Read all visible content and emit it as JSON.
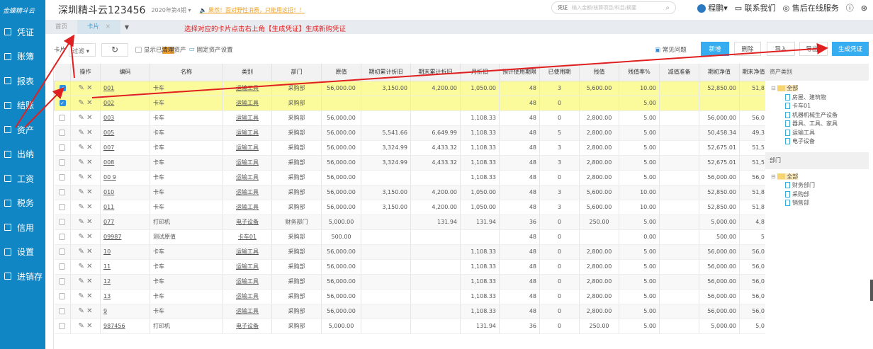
{
  "sidebar": {
    "logo": "金蝶精斗云",
    "items": [
      {
        "label": "凭证",
        "icon": "voucher-icon"
      },
      {
        "label": "账簿",
        "icon": "ledger-icon"
      },
      {
        "label": "报表",
        "icon": "report-icon"
      },
      {
        "label": "结账",
        "icon": "checkout-icon"
      },
      {
        "label": "资产",
        "icon": "asset-icon"
      },
      {
        "label": "出纳",
        "icon": "cashier-icon"
      },
      {
        "label": "工资",
        "icon": "salary-icon"
      },
      {
        "label": "税务",
        "icon": "tax-icon"
      },
      {
        "label": "信用",
        "icon": "credit-icon"
      },
      {
        "label": "设置",
        "icon": "gear-icon"
      },
      {
        "label": "进销存",
        "icon": "inventory-icon"
      }
    ]
  },
  "header": {
    "company": "深圳精斗云123456",
    "period": "2020年第4期",
    "notice": "果然！面对野性消费，只能用这招！！",
    "search_type": "凭证",
    "search_placeholder": "输入金额/核算项目/科目/摘要",
    "user": "程鹏",
    "contact": "联系我们",
    "service": "售后在线服务"
  },
  "tabs": [
    {
      "label": "首页"
    },
    {
      "label": "卡片"
    }
  ],
  "toolbar": {
    "label": "卡片",
    "filter": "过滤",
    "show_cleared_a": "显示已",
    "show_cleared_b": "清理",
    "show_cleared_c": "资产",
    "settings": "固定资产设置",
    "faq": "常见问题",
    "add": "新增",
    "delete": "删除",
    "import": "导入",
    "export": "导出",
    "generate": "生成凭证"
  },
  "table": {
    "columns": [
      "",
      "操作",
      "编码",
      "名称",
      "类别",
      "部门",
      "原值",
      "期初累计折旧",
      "期末累计折旧",
      "月折旧",
      "预计使用期限",
      "已使用期",
      "残值",
      "残值率%",
      "减值准备",
      "期初净值",
      "期末净值"
    ],
    "rows": [
      {
        "checked": true,
        "c": [
          "001",
          "卡车",
          "运输工具",
          "采购部",
          "56,000.00",
          "3,150.00",
          "4,200.00",
          "1,050.00",
          "48",
          "3",
          "5,600.00",
          "10.00",
          "",
          "52,850.00",
          "51,8"
        ]
      },
      {
        "checked": true,
        "c": [
          "002",
          "卡车",
          "运输工具",
          "采购部",
          "",
          "",
          "",
          "",
          "48",
          "0",
          "",
          "5.00",
          "",
          "",
          ""
        ]
      },
      {
        "checked": false,
        "c": [
          "003",
          "卡车",
          "运输工具",
          "采购部",
          "56,000.00",
          "",
          "",
          "1,108.33",
          "48",
          "0",
          "2,800.00",
          "5.00",
          "",
          "56,000.00",
          "56,0"
        ]
      },
      {
        "checked": false,
        "c": [
          "005",
          "卡车",
          "运输工具",
          "采购部",
          "56,000.00",
          "5,541.66",
          "6,649.99",
          "1,108.33",
          "48",
          "5",
          "2,800.00",
          "5.00",
          "",
          "50,458.34",
          "49,3"
        ]
      },
      {
        "checked": false,
        "c": [
          "007",
          "卡车",
          "运输工具",
          "采购部",
          "56,000.00",
          "3,324.99",
          "4,433.32",
          "1,108.33",
          "48",
          "3",
          "2,800.00",
          "5.00",
          "",
          "52,675.01",
          "51,5"
        ]
      },
      {
        "checked": false,
        "c": [
          "008",
          "卡车",
          "运输工具",
          "采购部",
          "56,000.00",
          "3,324.99",
          "4,433.32",
          "1,108.33",
          "48",
          "3",
          "2,800.00",
          "5.00",
          "",
          "52,675.01",
          "51,5"
        ]
      },
      {
        "checked": false,
        "c": [
          "00 9",
          "卡车",
          "运输工具",
          "采购部",
          "56,000.00",
          "",
          "",
          "1,108.33",
          "48",
          "0",
          "2,800.00",
          "5.00",
          "",
          "56,000.00",
          "56,0"
        ]
      },
      {
        "checked": false,
        "c": [
          "010",
          "卡车",
          "运输工具",
          "采购部",
          "56,000.00",
          "3,150.00",
          "4,200.00",
          "1,050.00",
          "48",
          "3",
          "5,600.00",
          "10.00",
          "",
          "52,850.00",
          "51,8"
        ]
      },
      {
        "checked": false,
        "c": [
          "011",
          "卡车",
          "运输工具",
          "采购部",
          "56,000.00",
          "3,150.00",
          "4,200.00",
          "1,050.00",
          "48",
          "3",
          "5,600.00",
          "10.00",
          "",
          "52,850.00",
          "51,8"
        ]
      },
      {
        "checked": false,
        "c": [
          "077",
          "打印机",
          "电子设备",
          "财务部门",
          "5,000.00",
          "",
          "131.94",
          "131.94",
          "36",
          "0",
          "250.00",
          "5.00",
          "",
          "5,000.00",
          "4,8"
        ]
      },
      {
        "checked": false,
        "c": [
          "09987",
          "测试原值",
          "卡车01",
          "采购部",
          "500.00",
          "",
          "",
          "",
          "48",
          "0",
          "",
          "0.00",
          "",
          "500.00",
          "5"
        ]
      },
      {
        "checked": false,
        "c": [
          "10",
          "卡车",
          "运输工具",
          "采购部",
          "56,000.00",
          "",
          "",
          "1,108.33",
          "48",
          "0",
          "2,800.00",
          "5.00",
          "",
          "56,000.00",
          "56,0"
        ]
      },
      {
        "checked": false,
        "c": [
          "11",
          "卡车",
          "运输工具",
          "采购部",
          "56,000.00",
          "",
          "",
          "1,108.33",
          "48",
          "0",
          "2,800.00",
          "5.00",
          "",
          "56,000.00",
          "56,0"
        ]
      },
      {
        "checked": false,
        "c": [
          "12",
          "卡车",
          "运输工具",
          "采购部",
          "56,000.00",
          "",
          "",
          "1,108.33",
          "48",
          "0",
          "2,800.00",
          "5.00",
          "",
          "56,000.00",
          "56,0"
        ]
      },
      {
        "checked": false,
        "c": [
          "13",
          "卡车",
          "运输工具",
          "采购部",
          "56,000.00",
          "",
          "",
          "1,108.33",
          "48",
          "0",
          "2,800.00",
          "5.00",
          "",
          "56,000.00",
          "56,0"
        ]
      },
      {
        "checked": false,
        "c": [
          "9",
          "卡车",
          "运输工具",
          "采购部",
          "56,000.00",
          "",
          "",
          "1,108.33",
          "48",
          "0",
          "2,800.00",
          "5.00",
          "",
          "56,000.00",
          "56,0"
        ]
      },
      {
        "checked": false,
        "c": [
          "987456",
          "打印机",
          "电子设备",
          "采购部",
          "5,000.00",
          "",
          "",
          "131.94",
          "36",
          "0",
          "250.00",
          "5.00",
          "",
          "5,000.00",
          "5,0"
        ]
      }
    ]
  },
  "right_panel": {
    "category_title": "资产类别",
    "category_root": "全部",
    "categories": [
      "房屋、建筑物",
      "卡车01",
      "机器机械生产设备",
      "器具、工具、家具",
      "运输工具",
      "电子设备"
    ],
    "dept_title": "部门",
    "dept_root": "全部",
    "depts": [
      "财务部门",
      "采购部",
      "销售部"
    ]
  },
  "annotation": {
    "text": "选择对应的卡片点击右上角【生成凭证】生成新购凭证",
    "color": "#e02020"
  },
  "colors": {
    "sidebar": "#1186c4",
    "primary": "#35adf0",
    "selected_row": "#fbfb9c"
  }
}
